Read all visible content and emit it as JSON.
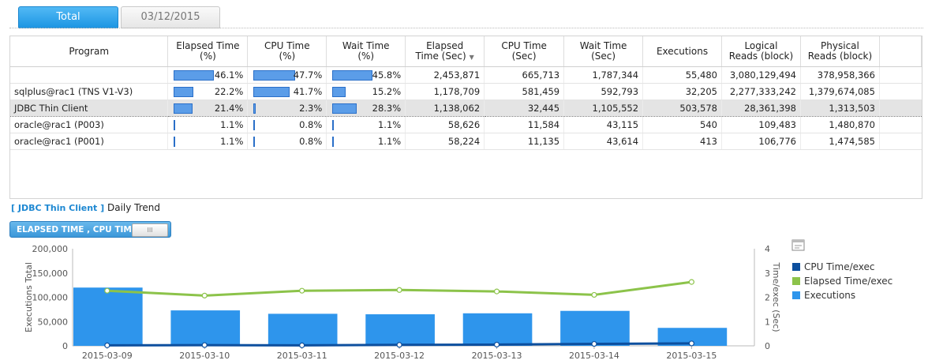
{
  "tabs": [
    {
      "label": "Total",
      "active": true
    },
    {
      "label": "03/12/2015",
      "active": false
    }
  ],
  "table": {
    "columns": [
      "Program",
      "Elapsed Time (%)",
      "CPU Time (%)",
      "Wait Time (%)",
      "Elapsed Time (Sec)",
      "CPU Time (Sec)",
      "Wait Time (Sec)",
      "Executions",
      "Logical Reads (block)",
      "Physical Reads (block)"
    ],
    "header_lines": [
      [
        "Program"
      ],
      [
        "Elapsed Time",
        "(%)"
      ],
      [
        "CPU Time",
        "(%)"
      ],
      [
        "Wait Time",
        "(%)"
      ],
      [
        "Elapsed",
        "Time (Sec)"
      ],
      [
        "CPU Time",
        "(Sec)"
      ],
      [
        "Wait Time",
        "(Sec)"
      ],
      [
        "Executions"
      ],
      [
        "Logical",
        "Reads (block)"
      ],
      [
        "Physical",
        "Reads (block)"
      ]
    ],
    "sorted_column": "Elapsed Time (Sec)",
    "rows": [
      {
        "program": "",
        "elapsed_pct": 46.1,
        "cpu_pct": 47.7,
        "wait_pct": 45.8,
        "elapsed_pct_label": "46.1%",
        "cpu_pct_label": "47.7%",
        "wait_pct_label": "45.8%",
        "elapsed_sec": "2,453,871",
        "cpu_sec": "665,713",
        "wait_sec": "1,787,344",
        "executions": "55,480",
        "logical_reads": "3,080,129,494",
        "physical_reads": "378,958,366",
        "selected": false
      },
      {
        "program": "sqlplus@rac1 (TNS V1-V3)",
        "elapsed_pct": 22.2,
        "cpu_pct": 41.7,
        "wait_pct": 15.2,
        "elapsed_pct_label": "22.2%",
        "cpu_pct_label": "41.7%",
        "wait_pct_label": "15.2%",
        "elapsed_sec": "1,178,709",
        "cpu_sec": "581,459",
        "wait_sec": "592,793",
        "executions": "32,205",
        "logical_reads": "2,277,333,242",
        "physical_reads": "1,379,674,085",
        "selected": false
      },
      {
        "program": "JDBC Thin Client",
        "elapsed_pct": 21.4,
        "cpu_pct": 2.3,
        "wait_pct": 28.3,
        "elapsed_pct_label": "21.4%",
        "cpu_pct_label": "2.3%",
        "wait_pct_label": "28.3%",
        "elapsed_sec": "1,138,062",
        "cpu_sec": "32,445",
        "wait_sec": "1,105,552",
        "executions": "503,578",
        "logical_reads": "28,361,398",
        "physical_reads": "1,313,503",
        "selected": true
      },
      {
        "program": "oracle@rac1 (P003)",
        "elapsed_pct": 1.1,
        "cpu_pct": 0.8,
        "wait_pct": 1.1,
        "elapsed_pct_label": "1.1%",
        "cpu_pct_label": "0.8%",
        "wait_pct_label": "1.1%",
        "elapsed_sec": "58,626",
        "cpu_sec": "11,584",
        "wait_sec": "43,115",
        "executions": "540",
        "logical_reads": "109,483",
        "physical_reads": "1,480,870",
        "selected": false
      },
      {
        "program": "oracle@rac1 (P001)",
        "elapsed_pct": 1.1,
        "cpu_pct": 0.8,
        "wait_pct": 1.1,
        "elapsed_pct_label": "1.1%",
        "cpu_pct_label": "0.8%",
        "wait_pct_label": "1.1%",
        "elapsed_sec": "58,224",
        "cpu_sec": "11,135",
        "wait_sec": "43,614",
        "executions": "413",
        "logical_reads": "106,776",
        "physical_reads": "1,474,585",
        "selected": false
      }
    ]
  },
  "trend": {
    "program_label": "[ JDBC Thin Client ]",
    "title": "Daily Trend",
    "toggle_label": "ELAPSED TIME , CPU TIME",
    "toggle_knob": "III",
    "export_icon": "chart-export-icon"
  },
  "chart_data": {
    "type": "bar",
    "categories": [
      "2015-03-09",
      "2015-03-10",
      "2015-03-11",
      "2015-03-12",
      "2015-03-13",
      "2015-03-14",
      "2015-03-15"
    ],
    "series": [
      {
        "name": "Executions",
        "kind": "bar",
        "axis": "left",
        "color": "#2e95ec",
        "values": [
          120000,
          73000,
          66000,
          65000,
          67000,
          72000,
          37000
        ]
      },
      {
        "name": "Elapsed Time/exec",
        "kind": "line",
        "axis": "right",
        "color": "#8cc34a",
        "values": [
          2.27,
          2.07,
          2.27,
          2.3,
          2.24,
          2.1,
          2.63
        ]
      },
      {
        "name": "CPU Time/exec",
        "kind": "line",
        "axis": "right",
        "color": "#0d4f9e",
        "values": [
          0.02,
          0.03,
          0.02,
          0.04,
          0.05,
          0.08,
          0.1
        ]
      }
    ],
    "legend_order": [
      "CPU Time/exec",
      "Elapsed Time/exec",
      "Executions"
    ],
    "ylabel": "Executions Total",
    "y2label": "Time/exec (Sec)",
    "ylim": [
      0,
      200000
    ],
    "y2lim": [
      0,
      4
    ],
    "yticks": [
      "0",
      "50,000",
      "100,000",
      "150,000",
      "200,000"
    ],
    "y2ticks": [
      "0",
      "1",
      "2",
      "3",
      "4"
    ],
    "legend_position": "right",
    "grid": false
  }
}
